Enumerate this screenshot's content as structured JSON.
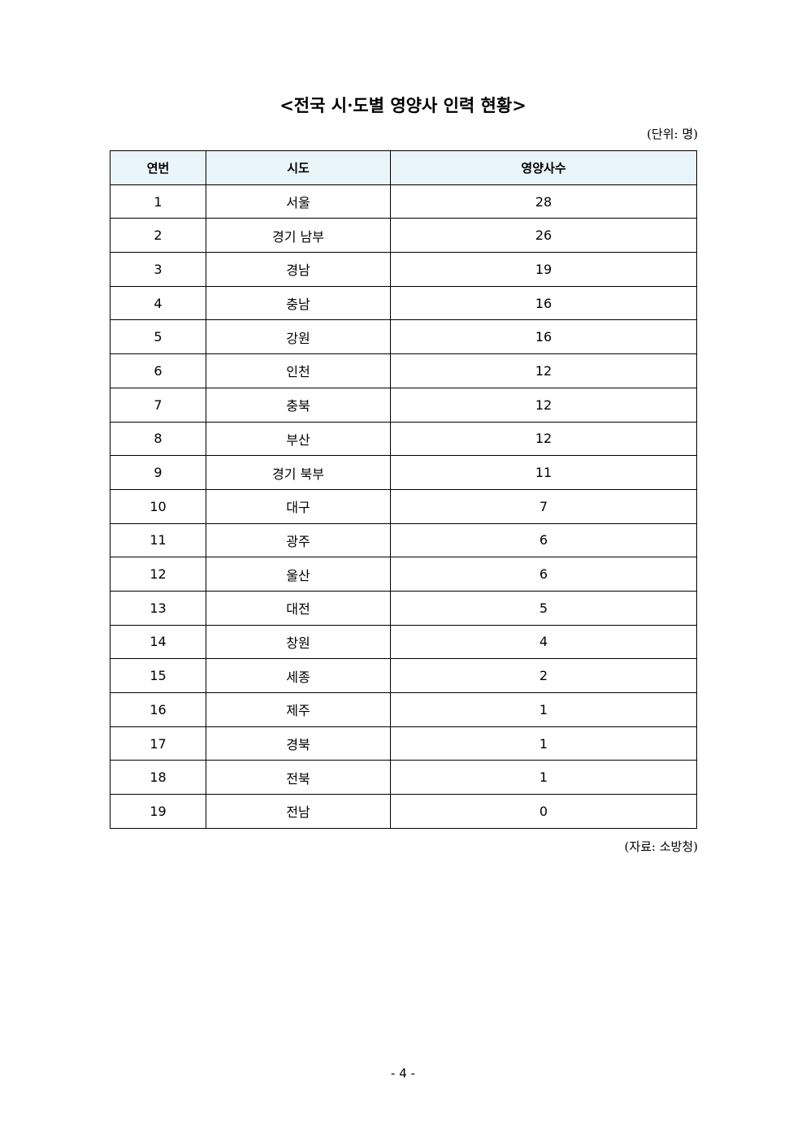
{
  "title": "<전국 시·도별 영양사 인력 현황>",
  "unit": "(단위: 명)",
  "headers": [
    "연번",
    "시도",
    "영양사수"
  ],
  "rows": [
    [
      "1",
      "서울",
      "28"
    ],
    [
      "2",
      "경기 남부",
      "26"
    ],
    [
      "3",
      "경남",
      "19"
    ],
    [
      "4",
      "충남",
      "16"
    ],
    [
      "5",
      "강원",
      "16"
    ],
    [
      "6",
      "인천",
      "12"
    ],
    [
      "7",
      "충북",
      "12"
    ],
    [
      "8",
      "부산",
      "12"
    ],
    [
      "9",
      "경기 북부",
      "11"
    ],
    [
      "10",
      "대구",
      "7"
    ],
    [
      "11",
      "광주",
      "6"
    ],
    [
      "12",
      "울산",
      "6"
    ],
    [
      "13",
      "대전",
      "5"
    ],
    [
      "14",
      "창원",
      "4"
    ],
    [
      "15",
      "세종",
      "2"
    ],
    [
      "16",
      "제주",
      "1"
    ],
    [
      "17",
      "경북",
      "1"
    ],
    [
      "18",
      "전북",
      "1"
    ],
    [
      "19",
      "전남",
      "0"
    ]
  ],
  "source": "(자료: 소방청)",
  "page_number": "- 4 -",
  "colors": {
    "header_bg": "#eaf4fb"
  }
}
